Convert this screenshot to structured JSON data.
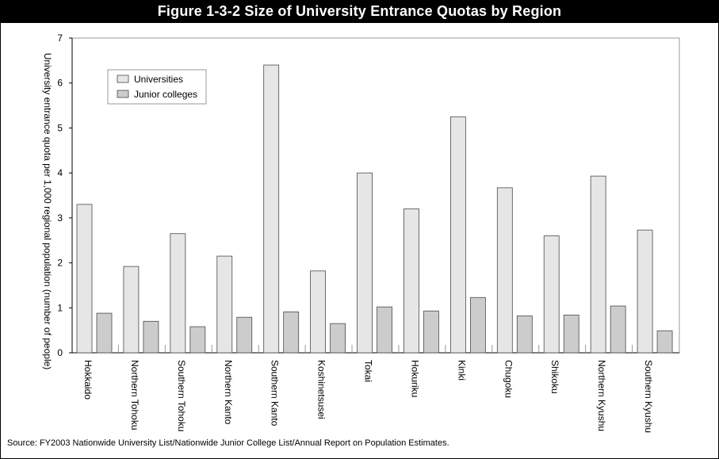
{
  "title": "Figure 1-3-2  Size of University Entrance Quotas by Region",
  "source": "Source:  FY2003  Nationwide  University  List/Nationwide  Junior  College  List/Annual  Report  on  Population  Estimates.",
  "colors": {
    "universities": "#e6e6e6",
    "junior_colleges": "#cccccc",
    "title_bar": "#000000"
  },
  "chart_data": {
    "type": "bar",
    "title": "",
    "xlabel": "",
    "ylabel": "University  entrance  quota  per  1,000  regional  population  (number  of  people)",
    "ylim": [
      0,
      7
    ],
    "yticks": [
      "0",
      "1",
      "2",
      "3",
      "4",
      "5",
      "6",
      "7"
    ],
    "grid": false,
    "legend_position": "top-left",
    "categories": [
      "Hokkaido",
      "Northern  Tohoku",
      "Southern  Tohoku",
      "Northern  Kanto",
      "Southern  Kanto",
      "Koshinetsusei",
      "Tokai",
      "Hokuriku",
      "Kinki",
      "Chugoku",
      "Shikoku",
      "Northern  Kyushu",
      "Southern  Kyushu"
    ],
    "series": [
      {
        "name": "Universities",
        "values": [
          3.3,
          1.92,
          2.65,
          2.15,
          6.4,
          1.82,
          4.0,
          3.2,
          5.25,
          3.67,
          2.6,
          3.93,
          2.73
        ]
      },
      {
        "name": "Junior  colleges",
        "values": [
          0.88,
          0.7,
          0.58,
          0.79,
          0.91,
          0.65,
          1.02,
          0.93,
          1.23,
          0.82,
          0.84,
          1.04,
          0.49
        ]
      }
    ]
  }
}
